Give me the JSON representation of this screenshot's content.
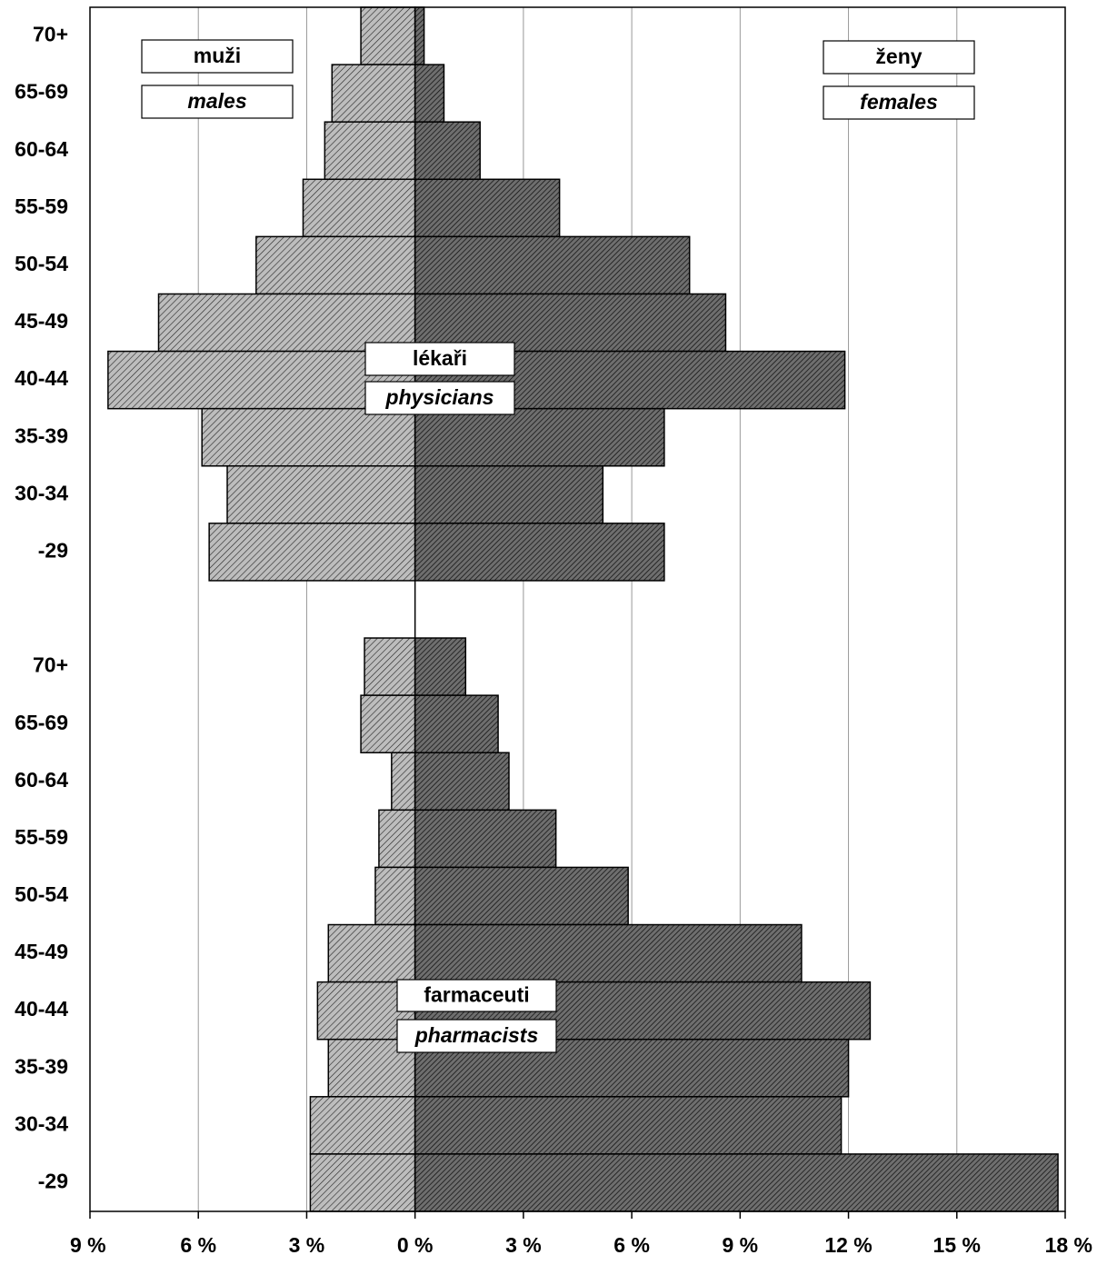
{
  "chart_data": {
    "type": "pyramid",
    "categories": [
      "70+",
      "65-69",
      "60-64",
      "55-59",
      "50-54",
      "45-49",
      "40-44",
      "35-39",
      "30-34",
      "-29"
    ],
    "xlim": [
      -9,
      18
    ],
    "xticks": [
      {
        "value": -9,
        "label": "9 %"
      },
      {
        "value": -6,
        "label": "6 %"
      },
      {
        "value": -3,
        "label": "3 %"
      },
      {
        "value": 0,
        "label": "0 %"
      },
      {
        "value": 3,
        "label": "3 %"
      },
      {
        "value": 6,
        "label": "6 %"
      },
      {
        "value": 9,
        "label": "9 %"
      },
      {
        "value": 12,
        "label": "12 %"
      },
      {
        "value": 15,
        "label": "15 %"
      },
      {
        "value": 18,
        "label": "18 %"
      }
    ],
    "grid": true,
    "legend": {
      "males": {
        "name": "muži",
        "name_en": "males",
        "color": "#bdbdbd"
      },
      "females": {
        "name": "ženy",
        "name_en": "females",
        "color": "#6e6e6e"
      }
    },
    "panels": [
      {
        "title": "lékaři",
        "subtitle": "physicians",
        "males": [
          1.5,
          2.3,
          2.5,
          3.1,
          4.4,
          7.1,
          8.5,
          5.9,
          5.2,
          5.7
        ],
        "females": [
          0.25,
          0.8,
          1.8,
          4.0,
          7.6,
          8.6,
          11.9,
          6.9,
          5.2,
          6.9
        ]
      },
      {
        "title": "farmaceuti",
        "subtitle": "pharmacists",
        "males": [
          1.4,
          1.5,
          0.65,
          1.0,
          1.1,
          2.4,
          2.7,
          2.4,
          2.9,
          2.9
        ],
        "females": [
          1.4,
          2.3,
          2.6,
          3.9,
          5.9,
          10.7,
          12.6,
          12.0,
          11.8,
          17.8
        ]
      }
    ]
  }
}
